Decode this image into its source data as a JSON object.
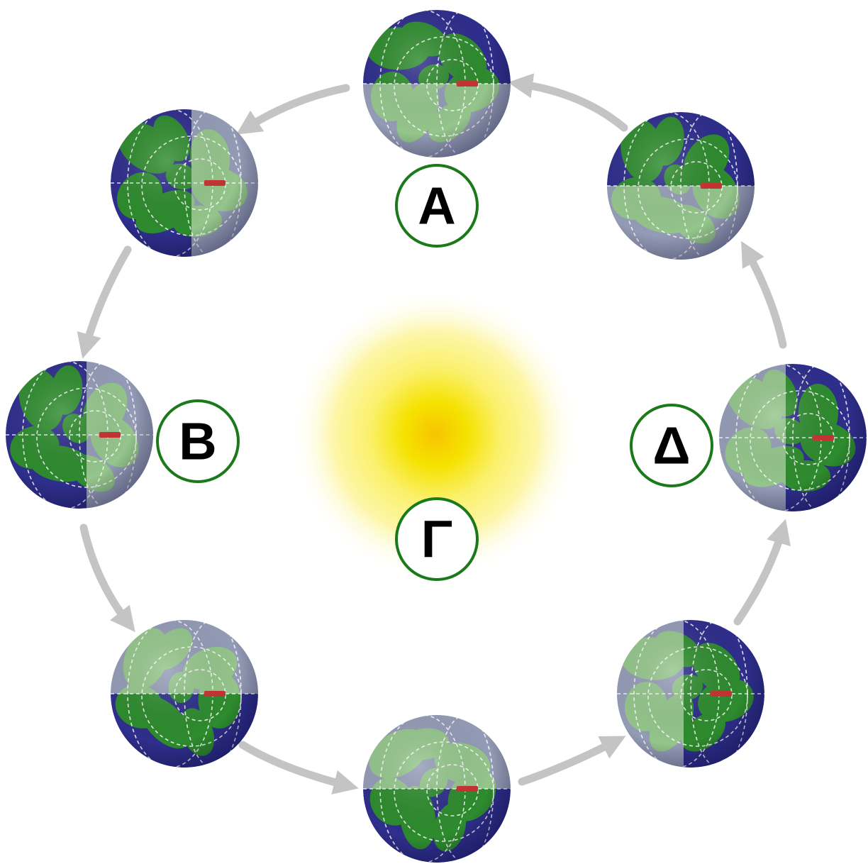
{
  "labels": {
    "a": "Α",
    "b": "Β",
    "g": "Γ",
    "d": "Δ"
  },
  "colors": {
    "ocean": "#2e2e8c",
    "land": "#2e8b2e",
    "daylight": "#eaf5d8",
    "label_ring": "#1a7a1a",
    "arrow": "#c4c4c4",
    "sun_core": "#f2dc00",
    "sun_glow": "#fff59a",
    "pole_marker": "#c83232"
  },
  "icons": {
    "sun": "sun-icon",
    "earth": "earth-globe-icon",
    "arrow": "orbit-arrow-icon"
  }
}
